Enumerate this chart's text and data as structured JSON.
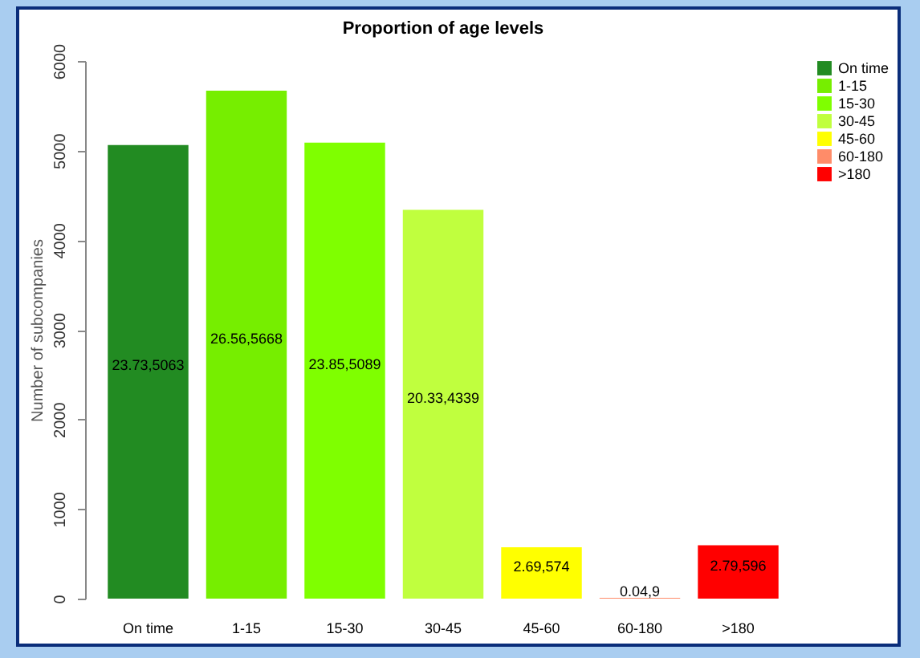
{
  "chart_data": {
    "type": "bar",
    "title": "Proportion of age levels",
    "ylabel": "Number of subcompanies",
    "categories": [
      "On time",
      "1-15",
      "15-30",
      "30-45",
      "45-60",
      "60-180",
      ">180"
    ],
    "stacked": true,
    "series": [
      {
        "name": "On time",
        "color": "#228b22",
        "values": [
          5063,
          null,
          null,
          null,
          null,
          null,
          null
        ],
        "value_labels": [
          "23.73,5063",
          null,
          null,
          null,
          null,
          null,
          null
        ]
      },
      {
        "name": "1-15",
        "color": "#76ee00",
        "values": [
          null,
          5668,
          null,
          null,
          null,
          null,
          null
        ],
        "value_labels": [
          null,
          "26.56,5668",
          null,
          null,
          null,
          null,
          null
        ]
      },
      {
        "name": "15-30",
        "color": "#7fff00",
        "values": [
          null,
          null,
          5089,
          null,
          null,
          null,
          null
        ],
        "value_labels": [
          null,
          null,
          "23.85,5089",
          null,
          null,
          null,
          null
        ]
      },
      {
        "name": "30-45",
        "color": "#c0ff3e",
        "values": [
          null,
          null,
          null,
          4339,
          null,
          null,
          null
        ],
        "value_labels": [
          null,
          null,
          null,
          "20.33,4339",
          null,
          null,
          null
        ]
      },
      {
        "name": "45-60",
        "color": "#ffff00",
        "values": [
          null,
          null,
          null,
          null,
          574,
          null,
          null
        ],
        "value_labels": [
          null,
          null,
          null,
          null,
          "2.69,574",
          null,
          null
        ]
      },
      {
        "name": "60-180",
        "color": "#ff8c69",
        "values": [
          null,
          null,
          null,
          null,
          null,
          9,
          null
        ],
        "value_labels": [
          null,
          null,
          null,
          null,
          null,
          "0.04,9",
          null
        ]
      },
      {
        "name": ">180",
        "color": "#ff0000",
        "values": [
          null,
          null,
          null,
          null,
          null,
          null,
          596
        ],
        "value_labels": [
          null,
          null,
          null,
          null,
          null,
          null,
          "2.79,596"
        ]
      }
    ],
    "ylim": [
      0,
      6000
    ],
    "yticks": [
      0,
      1000,
      2000,
      3000,
      4000,
      5000,
      6000
    ],
    "grid": false,
    "legend": "right"
  }
}
